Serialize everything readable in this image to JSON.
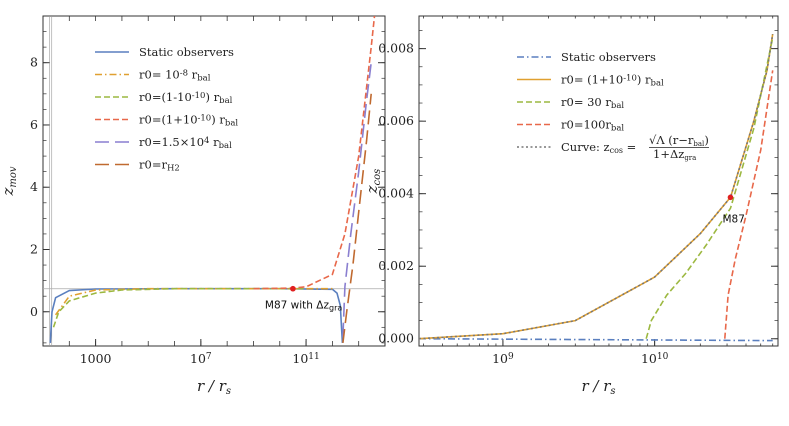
{
  "chart_data": [
    {
      "type": "line",
      "xlabel": "r / r_s",
      "ylabel": "z_mov",
      "x_scale": "log",
      "xlim": [
        10,
        100000000000000.0
      ],
      "ylim": [
        -1.1,
        9.5
      ],
      "x_ticks": [
        "1000",
        "10^7",
        "10^11"
      ],
      "y_ticks": [
        "0",
        "2",
        "4",
        "6",
        "8"
      ],
      "legend_position": "top-left",
      "annotation": "M87 with Δz_gra",
      "highlight_point": {
        "x": 31600000000.0,
        "y": 0.74
      },
      "horizontal_line": 0.74,
      "series": [
        {
          "name": "Static observers",
          "color": "#5a7fbf",
          "style": "solid",
          "points": [
            [
              19,
              -1.0
            ],
            [
              22,
              0.0
            ],
            [
              30,
              0.45
            ],
            [
              100,
              0.68
            ],
            [
              1000,
              0.73
            ],
            [
              1000000.0,
              0.74
            ],
            [
              10000000000.0,
              0.74
            ],
            [
              1000000000000.0,
              0.72
            ],
            [
              1500000000000.0,
              0.6
            ],
            [
              2000000000000.0,
              0.2
            ],
            [
              2400000000000.0,
              -1.0
            ]
          ]
        },
        {
          "name": "r0= 10^-8 r_bal",
          "color": "#e0a030",
          "style": "dashdot",
          "points": [
            [
              30,
              -0.1
            ],
            [
              100,
              0.5
            ],
            [
              1000,
              0.7
            ],
            [
              100000.0,
              0.74
            ],
            [
              10000000000.0,
              0.74
            ],
            [
              1000000000000.0,
              0.74
            ]
          ]
        },
        {
          "name": "r0=(1-10^-10) r_bal",
          "color": "#9cb840",
          "style": "dashed",
          "points": [
            [
              25,
              -0.5
            ],
            [
              40,
              0.0
            ],
            [
              100,
              0.35
            ],
            [
              1000,
              0.6
            ],
            [
              10000.0,
              0.7
            ],
            [
              1000000.0,
              0.74
            ],
            [
              10000000000.0,
              0.74
            ],
            [
              100000000000.0,
              0.74
            ]
          ]
        },
        {
          "name": "r0=(1+10^-10) r_bal",
          "color": "#e8684a",
          "style": "dashed",
          "points": [
            [
              1000000000.0,
              0.74
            ],
            [
              31600000000.0,
              0.76
            ],
            [
              100000000000.0,
              0.8
            ],
            [
              1000000000000.0,
              1.2
            ],
            [
              3000000000000.0,
              2.5
            ],
            [
              10000000000000.0,
              5.0
            ],
            [
              30000000000000.0,
              8.5
            ],
            [
              40000000000000.0,
              9.5
            ]
          ]
        },
        {
          "name": "r0=1.5×10^4 r_bal",
          "color": "#8a7fd0",
          "style": "longdash",
          "points": [
            [
              2500000000000.0,
              -0.8
            ],
            [
              3000000000000.0,
              0.8
            ],
            [
              5000000000000.0,
              2.5
            ],
            [
              10000000000000.0,
              4.5
            ],
            [
              20000000000000.0,
              6.8
            ],
            [
              30000000000000.0,
              8.0
            ]
          ]
        },
        {
          "name": "r0=r_H2",
          "color": "#c06a30",
          "style": "longdash",
          "points": [
            [
              2500000000000.0,
              -1.0
            ],
            [
              3500000000000.0,
              0.0
            ],
            [
              6000000000000.0,
              1.5
            ],
            [
              10000000000000.0,
              3.2
            ],
            [
              20000000000000.0,
              5.5
            ],
            [
              30000000000000.0,
              7.0
            ]
          ]
        }
      ]
    },
    {
      "type": "line",
      "xlabel": "r / r_s",
      "ylabel": "z_cos",
      "x_scale": "log",
      "xlim": [
        280000000.0,
        65000000000.0
      ],
      "ylim": [
        -0.0002,
        0.0089
      ],
      "x_ticks": [
        "10^9",
        "10^10"
      ],
      "y_ticks": [
        "0.000",
        "0.002",
        "0.004",
        "0.006",
        "0.008"
      ],
      "legend_position": "top-left",
      "annotation": "M87",
      "highlight_point": {
        "x": 31600000000.0,
        "y": 0.0039
      },
      "series": [
        {
          "name": "Static observers",
          "color": "#5a7fbf",
          "style": "dashdot",
          "points": [
            [
              280000000.0,
              0.0
            ],
            [
              60000000000.0,
              -5e-05
            ]
          ]
        },
        {
          "name": "r0= (1+10^-10) r_bal",
          "color": "#e0a030",
          "style": "solid",
          "points": [
            [
              280000000.0,
              0.0
            ],
            [
              1000000000.0,
              0.00014
            ],
            [
              3000000000.0,
              0.0005
            ],
            [
              10000000000.0,
              0.0017
            ],
            [
              20000000000.0,
              0.0029
            ],
            [
              31600000000.0,
              0.0039
            ],
            [
              45000000000.0,
              0.006
            ],
            [
              55000000000.0,
              0.0074
            ],
            [
              60000000000.0,
              0.0084
            ]
          ]
        },
        {
          "name": "r0= 30 r_bal",
          "color": "#9cb840",
          "style": "dashed",
          "points": [
            [
              8800000000.0,
              0.0
            ],
            [
              9500000000.0,
              0.0005
            ],
            [
              12000000000.0,
              0.0012
            ],
            [
              16000000000.0,
              0.0018
            ],
            [
              22000000000.0,
              0.0026
            ],
            [
              31600000000.0,
              0.0036
            ],
            [
              45000000000.0,
              0.0058
            ],
            [
              60000000000.0,
              0.0083
            ]
          ]
        },
        {
          "name": "r0=100r_bal",
          "color": "#e8684a",
          "style": "dashed",
          "points": [
            [
              29000000000.0,
              0.0
            ],
            [
              30500000000.0,
              0.0012
            ],
            [
              34000000000.0,
              0.0022
            ],
            [
              40000000000.0,
              0.0034
            ],
            [
              50000000000.0,
              0.0052
            ],
            [
              60000000000.0,
              0.0074
            ]
          ]
        },
        {
          "name": "Curve: z_cos = √Λ (r−r_bal) / (1+Δz_gra)",
          "color": "#777777",
          "style": "dotted",
          "points": [
            [
              280000000.0,
              0.0
            ],
            [
              1000000000.0,
              0.00014
            ],
            [
              3000000000.0,
              0.0005
            ],
            [
              10000000000.0,
              0.0017
            ],
            [
              20000000000.0,
              0.0029
            ],
            [
              31600000000.0,
              0.0039
            ],
            [
              45000000000.0,
              0.006
            ],
            [
              55000000000.0,
              0.0074
            ],
            [
              60000000000.0,
              0.0084
            ]
          ]
        }
      ]
    }
  ]
}
